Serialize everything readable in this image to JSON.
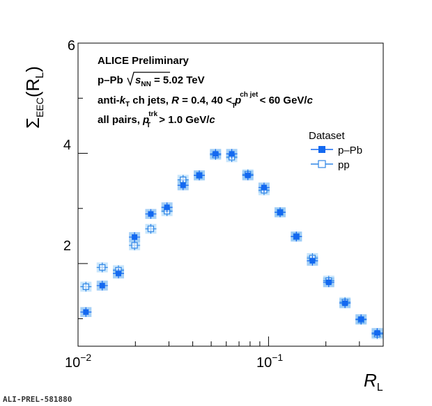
{
  "chart_data": {
    "type": "scatter",
    "x_scale": "log",
    "xlim": [
      0.01,
      0.4
    ],
    "ylim": [
      0.5,
      6
    ],
    "yticks": [
      "2",
      "4",
      "6"
    ],
    "xticks": [
      {
        "base": "10",
        "exp": "−2"
      },
      {
        "base": "10",
        "exp": "−1"
      }
    ],
    "xlabel": {
      "main": "R",
      "sub": "L"
    },
    "ylabel": {
      "sigma": "Σ",
      "sub": "EEC",
      "rest": "(R",
      "rsub": "L",
      "close": ")"
    },
    "annotations": {
      "line1": "ALICE Preliminary",
      "line2_prefix": "p–Pb",
      "line2_s": "s",
      "line2_nn": "NN",
      "line2_suffix": " = 5.02 TeV",
      "line3_a": "anti-",
      "line3_k": "k",
      "line3_ksub": "T",
      "line3_b": " ch jets,  ",
      "line3_R": "R",
      "line3_c": " = 0.4, 40 <  ",
      "line3_p": "p",
      "line3_psup": "ch jet",
      "line3_psub": "T",
      "line3_d": " < 60 GeV/",
      "line3_c_unit": "c",
      "line4_a": "all pairs,  ",
      "line4_p": "p",
      "line4_psup": "trk",
      "line4_psub": "T",
      "line4_b": " > 1.0 GeV/",
      "line4_c": "c"
    },
    "legend": {
      "title": "Dataset",
      "placement": "top-right"
    },
    "colors": {
      "ppb": "#1469f0",
      "pp": "#2f86e6",
      "band_ppb": "#96c8f5",
      "band_pp": "#bfe2fb"
    },
    "series": [
      {
        "name": "p–Pb",
        "marker": "filled-square",
        "x": [
          0.011,
          0.0134,
          0.0163,
          0.0198,
          0.0241,
          0.0293,
          0.0356,
          0.0433,
          0.0527,
          0.0641,
          0.0779,
          0.0947,
          0.115,
          0.14,
          0.17,
          0.207,
          0.252,
          0.306,
          0.372
        ],
        "y": [
          1.12,
          1.6,
          1.82,
          2.48,
          2.9,
          3.02,
          3.42,
          3.6,
          3.99,
          3.99,
          3.6,
          3.38,
          2.93,
          2.49,
          2.05,
          1.66,
          1.28,
          0.99,
          0.74
        ]
      },
      {
        "name": "pp",
        "marker": "open-square",
        "x": [
          0.011,
          0.0134,
          0.0163,
          0.0198,
          0.0241,
          0.0293,
          0.0356,
          0.0433,
          0.0527,
          0.0641,
          0.0779,
          0.0947,
          0.115,
          0.14,
          0.17,
          0.207,
          0.252,
          0.306,
          0.372
        ],
        "y": [
          1.58,
          1.93,
          1.88,
          2.33,
          2.63,
          2.95,
          3.52,
          3.6,
          3.97,
          3.93,
          3.62,
          3.33,
          2.93,
          2.49,
          2.1,
          1.69,
          1.3,
          0.98,
          0.72
        ]
      }
    ]
  },
  "footer": {
    "reference": "ALI-PREL-581880"
  }
}
